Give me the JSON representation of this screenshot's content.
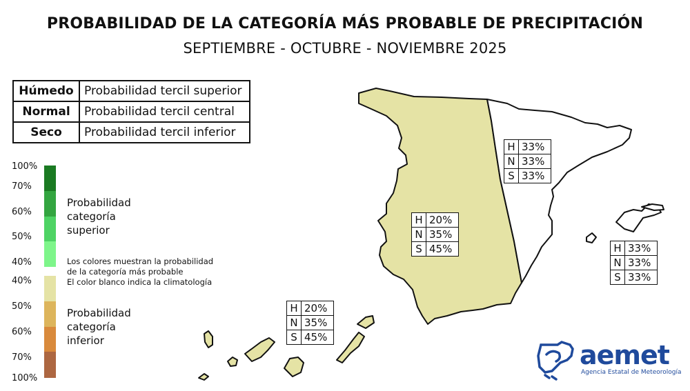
{
  "header": {
    "title": "PROBABILIDAD DE LA CATEGORÍA MÁS PROBABLE DE PRECIPITACIÓN",
    "subtitle": "SEPTIEMBRE - OCTUBRE - NOVIEMBRE 2025"
  },
  "legend_table": [
    {
      "category": "Húmedo",
      "description": "Probabilidad tercil superior"
    },
    {
      "category": "Normal",
      "description": "Probabilidad tercil central"
    },
    {
      "category": "Seco",
      "description": "Probabilidad tercil inferior"
    }
  ],
  "color_scale": {
    "labels": [
      "100%",
      "70%",
      "60%",
      "50%",
      "40%",
      "40%",
      "50%",
      "60%",
      "70%",
      "100%"
    ],
    "upper_colors": [
      "#1a7a22",
      "#33a540",
      "#4ed364",
      "#7ef58a",
      "#d5f75d"
    ],
    "lower_colors": [
      "#e5e3a5",
      "#ddb55c",
      "#d98a3c",
      "#ad6741"
    ],
    "upper_title": [
      "Probabilidad",
      "categoría",
      "superior"
    ],
    "lower_title": [
      "Probabilidad",
      "categoría",
      "inferior"
    ],
    "note": [
      "Los colores muestran la probabilidad",
      "de la categoría más probable",
      "El color blanco indica la climatología"
    ]
  },
  "map": {
    "region_colors": {
      "dry": "#e5e3a5",
      "climatology": "#ffffff",
      "outline": "#111111"
    },
    "boxes": {
      "northeast": [
        {
          "k": "H",
          "v": "33%"
        },
        {
          "k": "N",
          "v": "33%"
        },
        {
          "k": "S",
          "v": "33%"
        }
      ],
      "west": [
        {
          "k": "H",
          "v": "20%"
        },
        {
          "k": "N",
          "v": "35%"
        },
        {
          "k": "S",
          "v": "45%"
        }
      ],
      "balearic": [
        {
          "k": "H",
          "v": "33%"
        },
        {
          "k": "N",
          "v": "33%"
        },
        {
          "k": "S",
          "v": "33%"
        }
      ],
      "canary": [
        {
          "k": "H",
          "v": "20%"
        },
        {
          "k": "N",
          "v": "35%"
        },
        {
          "k": "S",
          "v": "45%"
        }
      ]
    }
  },
  "logo": {
    "word": "aemet",
    "subtitle": "Agencia Estatal de Meteorología"
  }
}
